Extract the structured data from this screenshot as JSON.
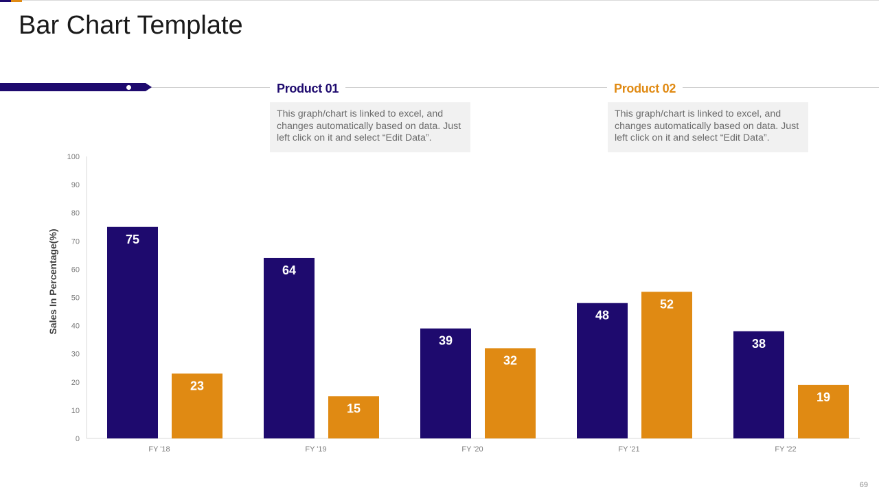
{
  "page": {
    "title": "Bar Chart Template",
    "page_number": "69"
  },
  "legend": {
    "product_1": "Product 01",
    "product_2": "Product 02"
  },
  "notes": {
    "product_1": "This graph/chart is linked to excel, and changes automatically based on data. Just left click on it and select “Edit Data”.",
    "product_2": "This graph/chart is linked to excel, and changes automatically based on data. Just left click on it and select “Edit Data”."
  },
  "colors": {
    "product_1": "#1e0a6e",
    "product_2": "#e08a13"
  },
  "chart_data": {
    "type": "bar",
    "title": "",
    "xlabel": "",
    "ylabel": "Sales In Percentage(%)",
    "categories": [
      "FY '18",
      "FY '19",
      "FY '20",
      "FY '21",
      "FY '22"
    ],
    "series": [
      {
        "name": "Product 01",
        "values": [
          75,
          64,
          39,
          48,
          38
        ]
      },
      {
        "name": "Product 02",
        "values": [
          23,
          15,
          32,
          52,
          19
        ]
      }
    ],
    "ylim": [
      0,
      100
    ],
    "yticks": [
      0,
      10,
      20,
      30,
      40,
      50,
      60,
      70,
      80,
      90,
      100
    ],
    "grid": false,
    "legend_position": "top"
  }
}
